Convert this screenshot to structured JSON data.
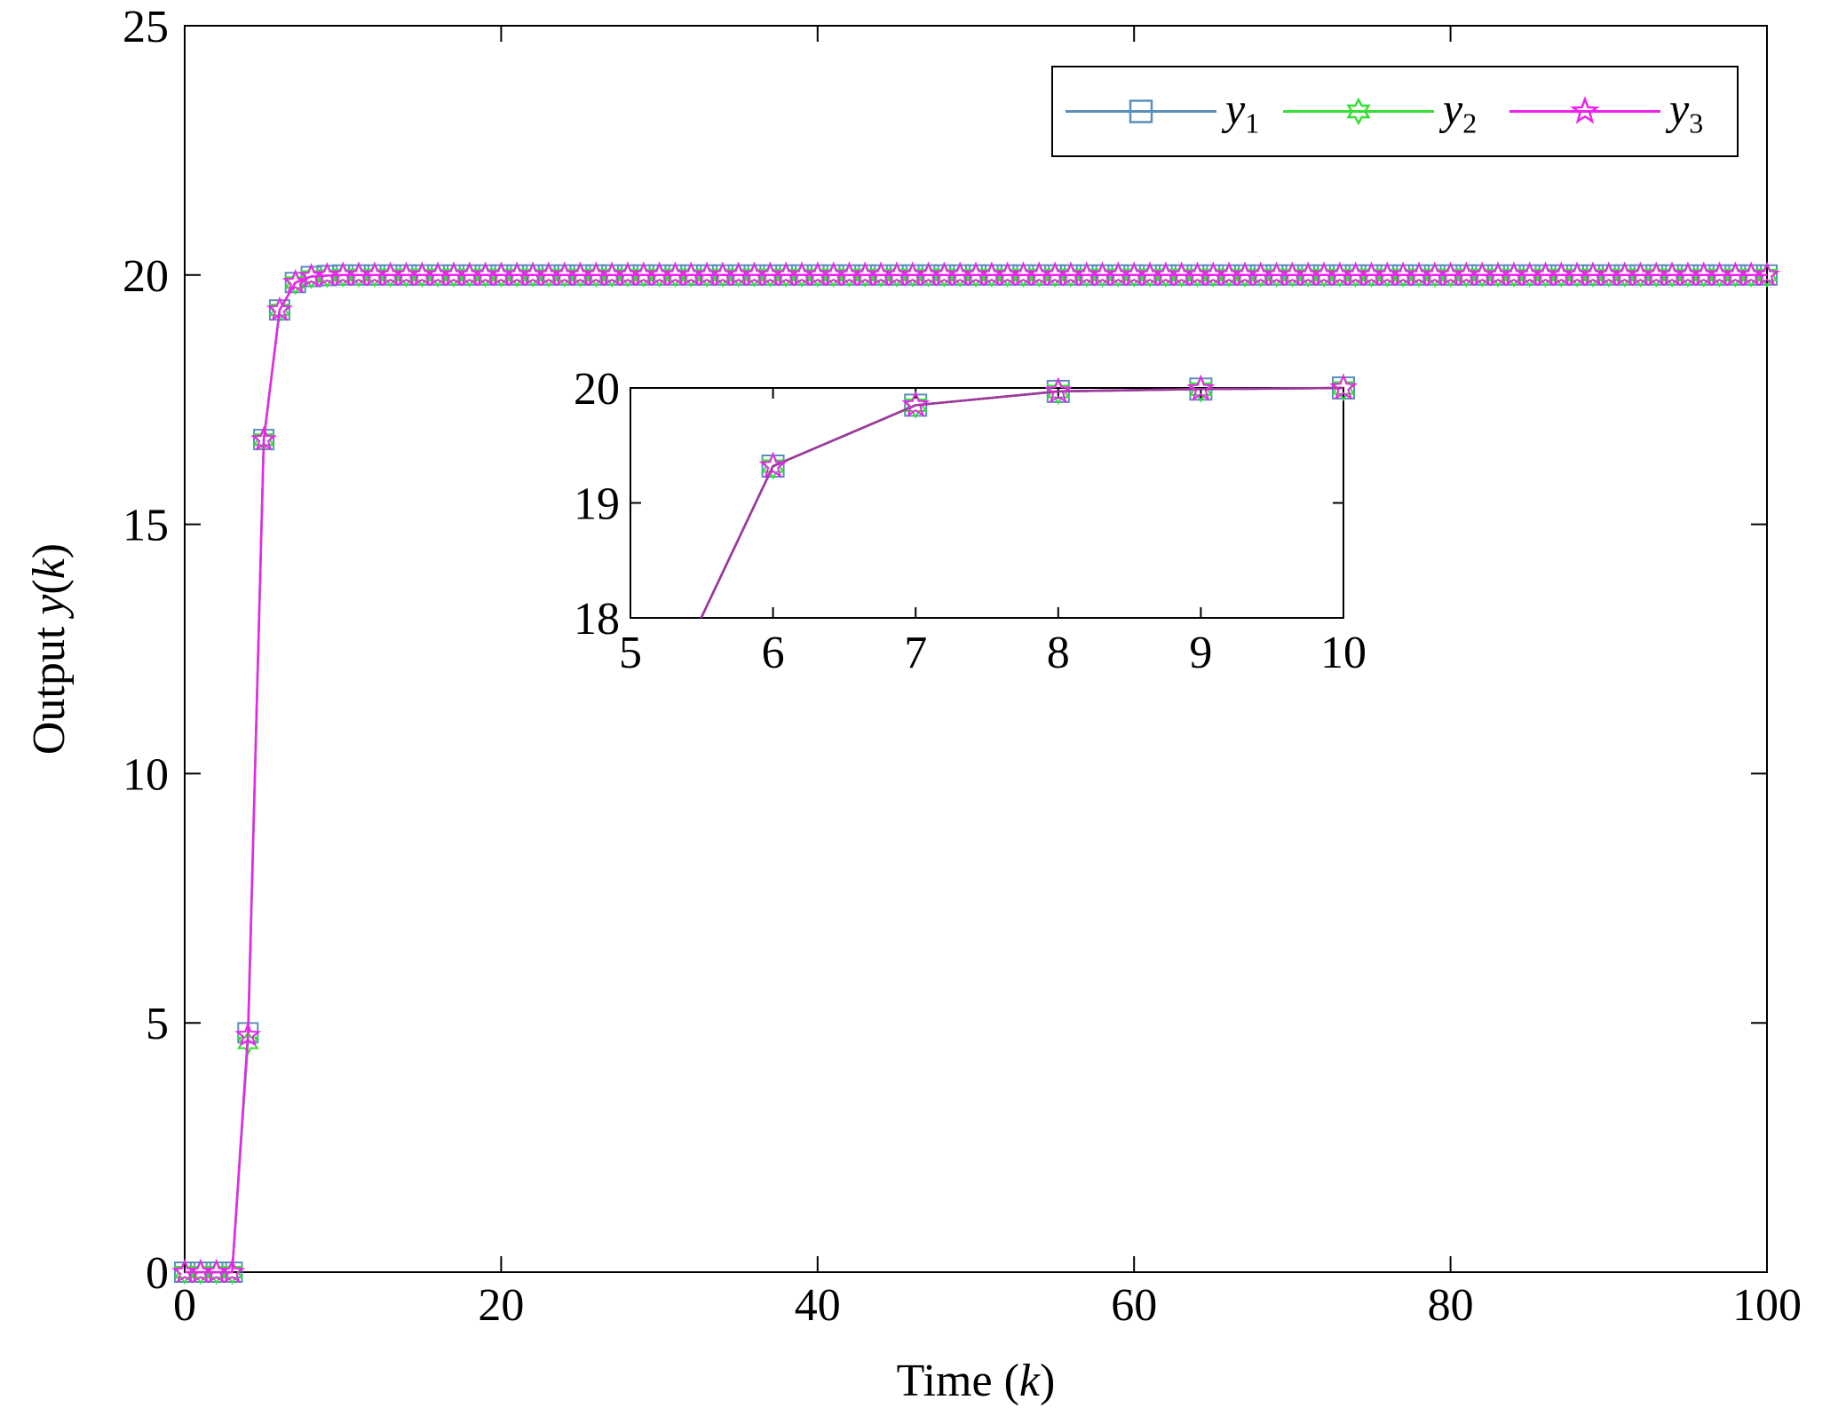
{
  "chart_data": [
    {
      "type": "line",
      "role": "main",
      "xlabel": "Time (k)",
      "xlabel_parts": {
        "prefix": "Time (",
        "var": "k",
        "suffix": ")"
      },
      "ylabel": "Output y(k)",
      "ylabel_parts": {
        "prefix": "Output ",
        "var": "y",
        "mid": "(",
        "var2": "k",
        "suffix": ")"
      },
      "xlim": [
        0,
        100
      ],
      "ylim": [
        0,
        25
      ],
      "xticks": [
        0,
        20,
        40,
        60,
        80,
        100
      ],
      "yticks": [
        0,
        5,
        10,
        15,
        20,
        25
      ],
      "grid": false,
      "legend": "top-right",
      "x": [
        0,
        1,
        2,
        3,
        4,
        5,
        6,
        7,
        8,
        9,
        10,
        11,
        12,
        13,
        14,
        15,
        16,
        17,
        18,
        19,
        20,
        21,
        22,
        23,
        24,
        25,
        26,
        27,
        28,
        29,
        30,
        31,
        32,
        33,
        34,
        35,
        36,
        37,
        38,
        39,
        40,
        41,
        42,
        43,
        44,
        45,
        46,
        47,
        48,
        49,
        50,
        51,
        52,
        53,
        54,
        55,
        56,
        57,
        58,
        59,
        60,
        61,
        62,
        63,
        64,
        65,
        66,
        67,
        68,
        69,
        70,
        71,
        72,
        73,
        74,
        75,
        76,
        77,
        78,
        79,
        80,
        81,
        82,
        83,
        84,
        85,
        86,
        87,
        88,
        89,
        90,
        91,
        92,
        93,
        94,
        95,
        96,
        97,
        98,
        99,
        100
      ],
      "head_values": {
        "y1": [
          0,
          0,
          0,
          0,
          4.8,
          16.7,
          19.3,
          19.85,
          19.97,
          19.99,
          20
        ],
        "y2": [
          0,
          0,
          0,
          0,
          4.6,
          16.7,
          19.3,
          19.85,
          19.97,
          19.99,
          20
        ],
        "y3": [
          0,
          0,
          0,
          0,
          4.75,
          16.7,
          19.3,
          19.85,
          19.97,
          19.99,
          20
        ]
      },
      "steady_value": 20,
      "series": [
        {
          "key": "y1",
          "name": "y",
          "sub": "1",
          "color": "#5b8fb9",
          "marker": "square"
        },
        {
          "key": "y2",
          "name": "y",
          "sub": "2",
          "color": "#33e033",
          "marker": "hexagram"
        },
        {
          "key": "y3",
          "name": "y",
          "sub": "3",
          "color": "#ee22ee",
          "marker": "pentagram"
        }
      ]
    },
    {
      "type": "line",
      "role": "inset",
      "xlim": [
        5,
        10
      ],
      "ylim": [
        18,
        20
      ],
      "xticks": [
        5,
        6,
        7,
        8,
        9,
        10
      ],
      "yticks": [
        18,
        19,
        20
      ],
      "x": [
        5,
        6,
        7,
        8,
        9,
        10
      ],
      "line_color": "#9b3a9b",
      "series": [
        {
          "key": "y1",
          "values": [
            16.7,
            19.32,
            19.85,
            19.97,
            19.99,
            20
          ]
        },
        {
          "key": "y2",
          "values": [
            16.7,
            19.32,
            19.85,
            19.97,
            19.99,
            20
          ]
        },
        {
          "key": "y3",
          "values": [
            16.7,
            19.32,
            19.85,
            19.97,
            19.99,
            20
          ]
        }
      ]
    }
  ]
}
